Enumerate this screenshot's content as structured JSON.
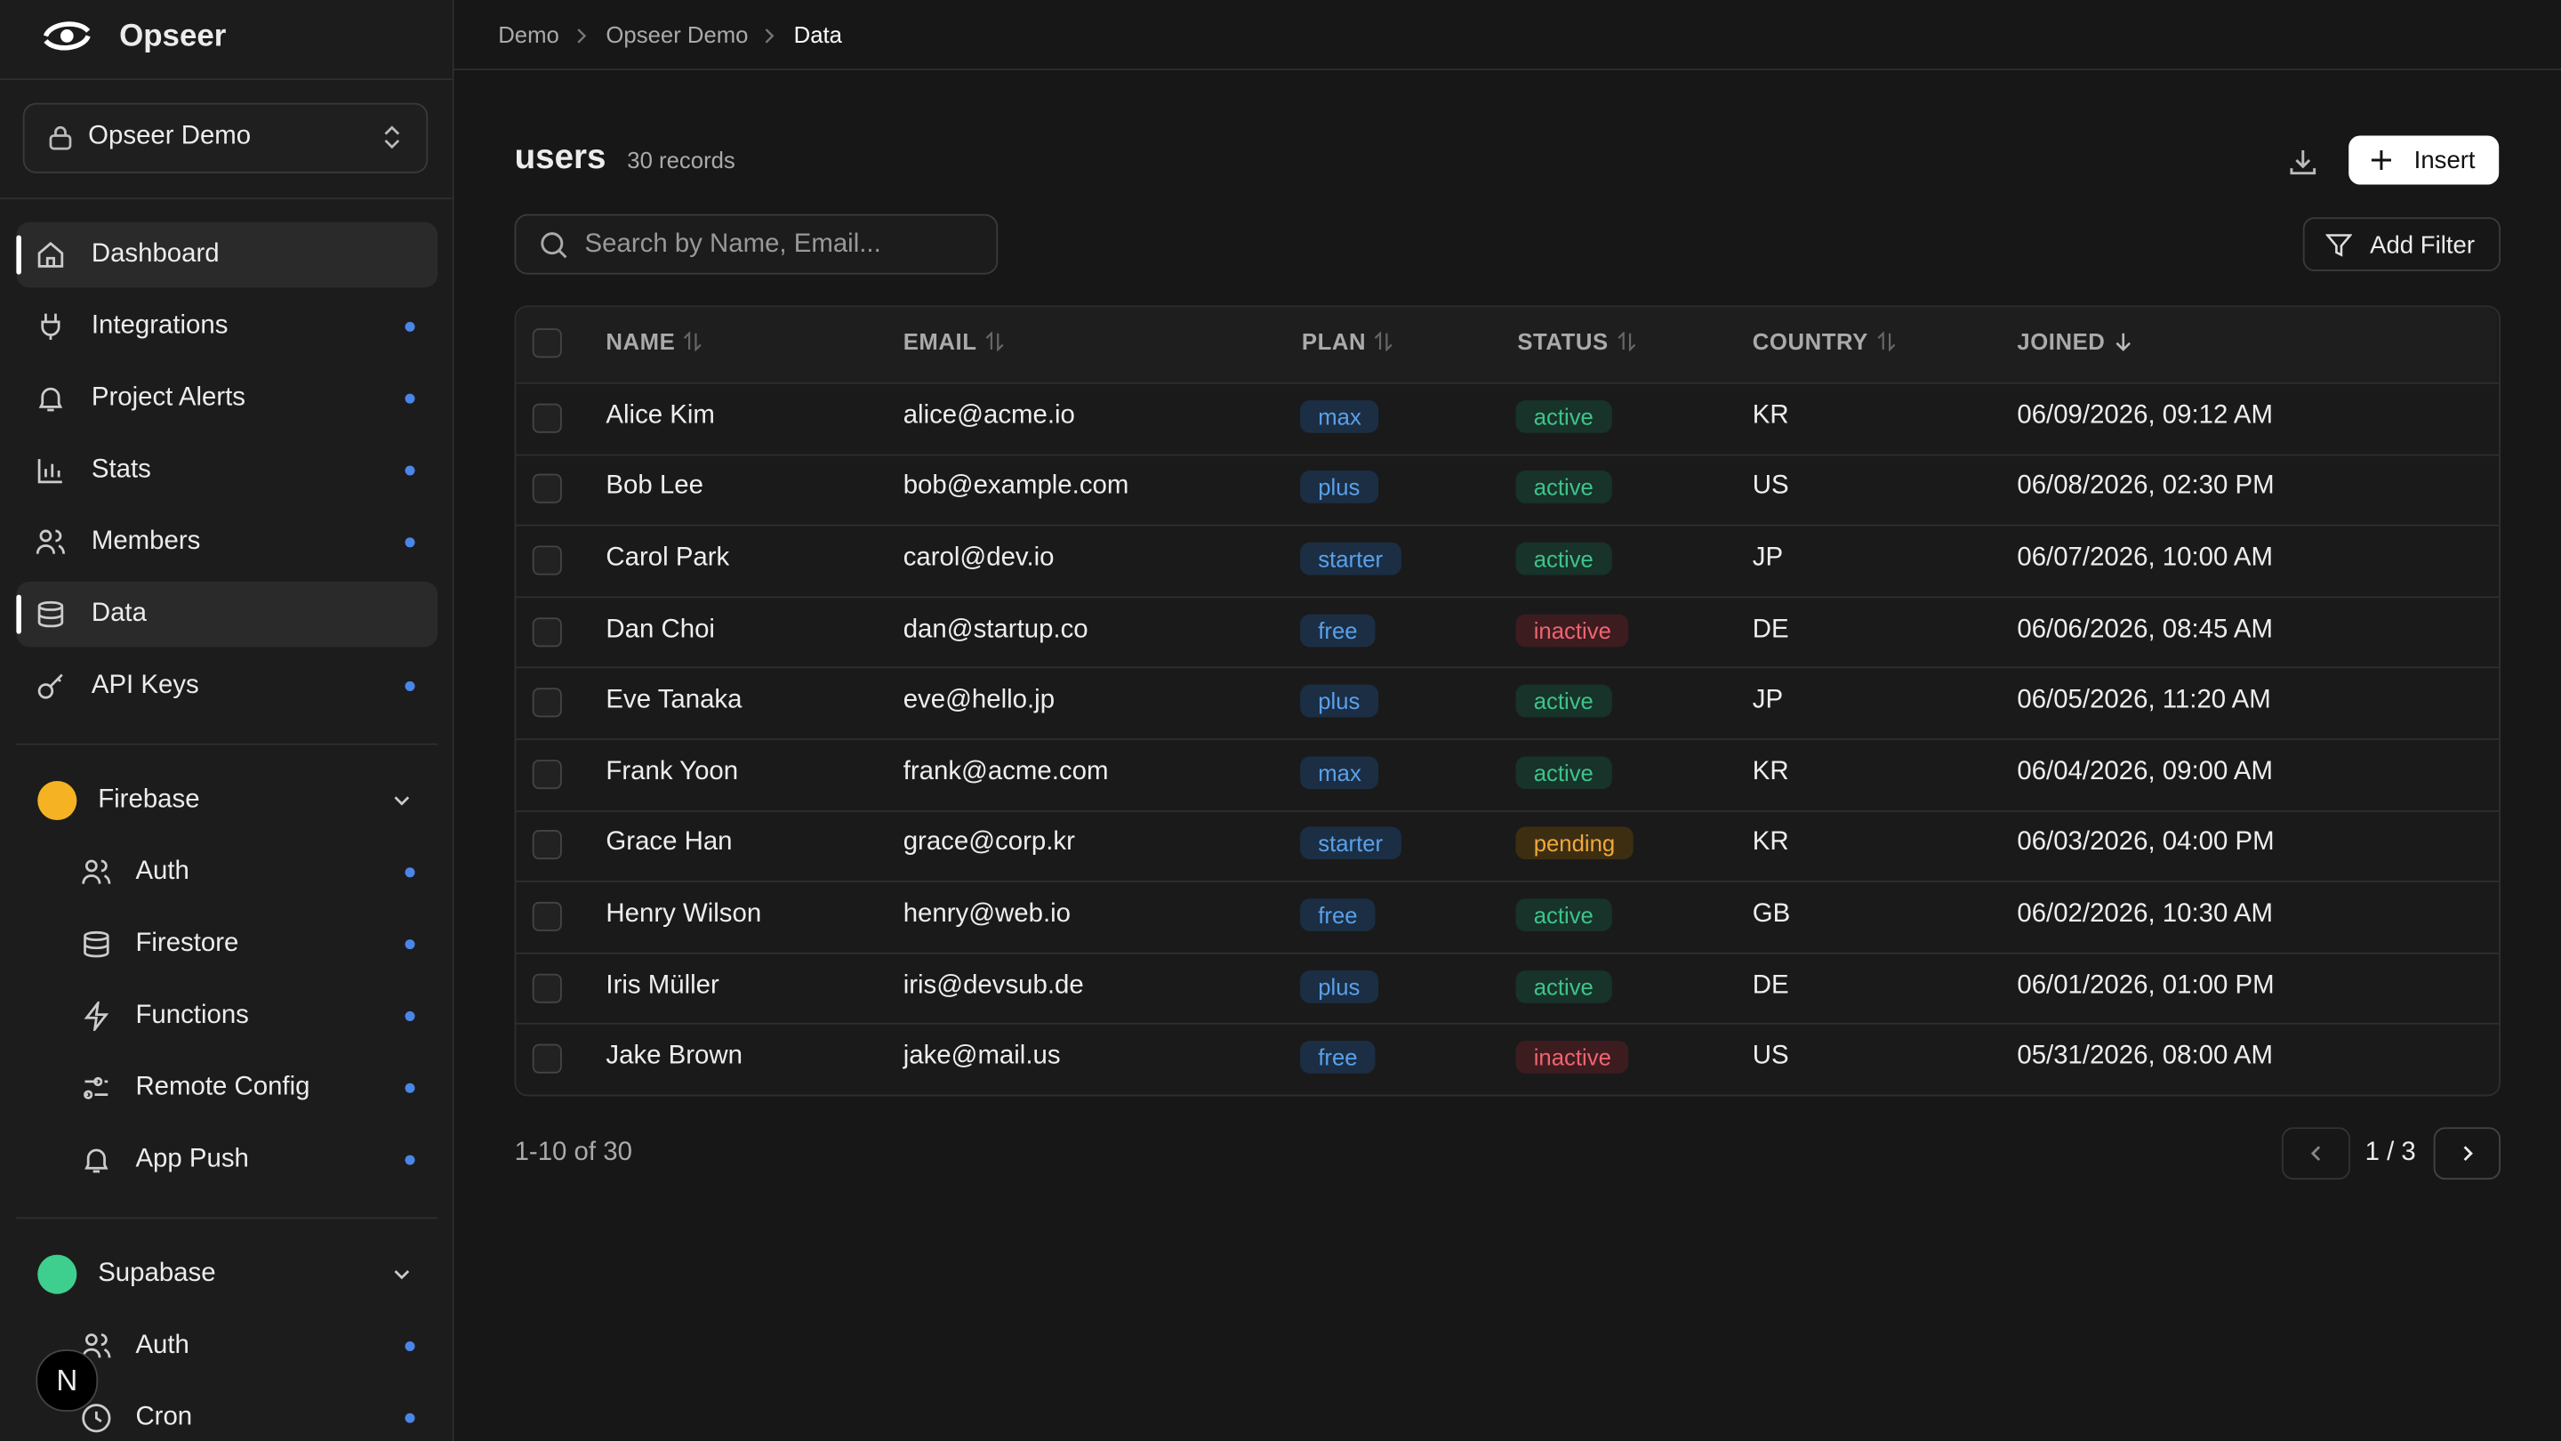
{
  "brand": "Opseer",
  "project": "Opseer Demo",
  "nav": [
    {
      "label": "Dashboard",
      "dot": false,
      "active": true
    },
    {
      "label": "Integrations",
      "dot": true,
      "active": false
    },
    {
      "label": "Project Alerts",
      "dot": true,
      "active": false
    },
    {
      "label": "Stats",
      "dot": true,
      "active": false
    },
    {
      "label": "Members",
      "dot": true,
      "active": false
    },
    {
      "label": "Data",
      "dot": false,
      "active": true
    },
    {
      "label": "API Keys",
      "dot": true,
      "active": false
    }
  ],
  "groups": [
    {
      "title": "Firebase",
      "items": [
        "Auth",
        "Firestore",
        "Functions",
        "Remote Config",
        "App Push"
      ]
    },
    {
      "title": "Supabase",
      "items": [
        "Auth",
        "Cron"
      ]
    }
  ],
  "avatar": "N",
  "breadcrumb": [
    "Demo",
    "Opseer Demo",
    "Data"
  ],
  "table": {
    "name": "users",
    "count": "30 records",
    "search": "Search by Name, Email...",
    "insert": "Insert",
    "filter": "Add Filter",
    "columns": [
      "NAME",
      "EMAIL",
      "PLAN",
      "STATUS",
      "COUNTRY",
      "JOINED"
    ],
    "rows": [
      [
        "Alice Kim",
        "alice@acme.io",
        "max",
        "active",
        "KR",
        "06/09/2026, 09:12 AM"
      ],
      [
        "Bob Lee",
        "bob@example.com",
        "plus",
        "active",
        "US",
        "06/08/2026, 02:30 PM"
      ],
      [
        "Carol Park",
        "carol@dev.io",
        "starter",
        "active",
        "JP",
        "06/07/2026, 10:00 AM"
      ],
      [
        "Dan Choi",
        "dan@startup.co",
        "free",
        "inactive",
        "DE",
        "06/06/2026, 08:45 AM"
      ],
      [
        "Eve Tanaka",
        "eve@hello.jp",
        "plus",
        "active",
        "JP",
        "06/05/2026, 11:20 AM"
      ],
      [
        "Frank Yoon",
        "frank@acme.com",
        "max",
        "active",
        "KR",
        "06/04/2026, 09:00 AM"
      ],
      [
        "Grace Han",
        "grace@corp.kr",
        "starter",
        "pending",
        "KR",
        "06/03/2026, 04:00 PM"
      ],
      [
        "Henry Wilson",
        "henry@web.io",
        "free",
        "active",
        "GB",
        "06/02/2026, 10:30 AM"
      ],
      [
        "Iris Müller",
        "iris@devsub.de",
        "plus",
        "active",
        "DE",
        "06/01/2026, 01:00 PM"
      ],
      [
        "Jake Brown",
        "jake@mail.us",
        "free",
        "inactive",
        "US",
        "05/31/2026, 08:00 AM"
      ]
    ]
  },
  "pagination": {
    "range": "1-10 of 30",
    "page": "1 / 3"
  }
}
